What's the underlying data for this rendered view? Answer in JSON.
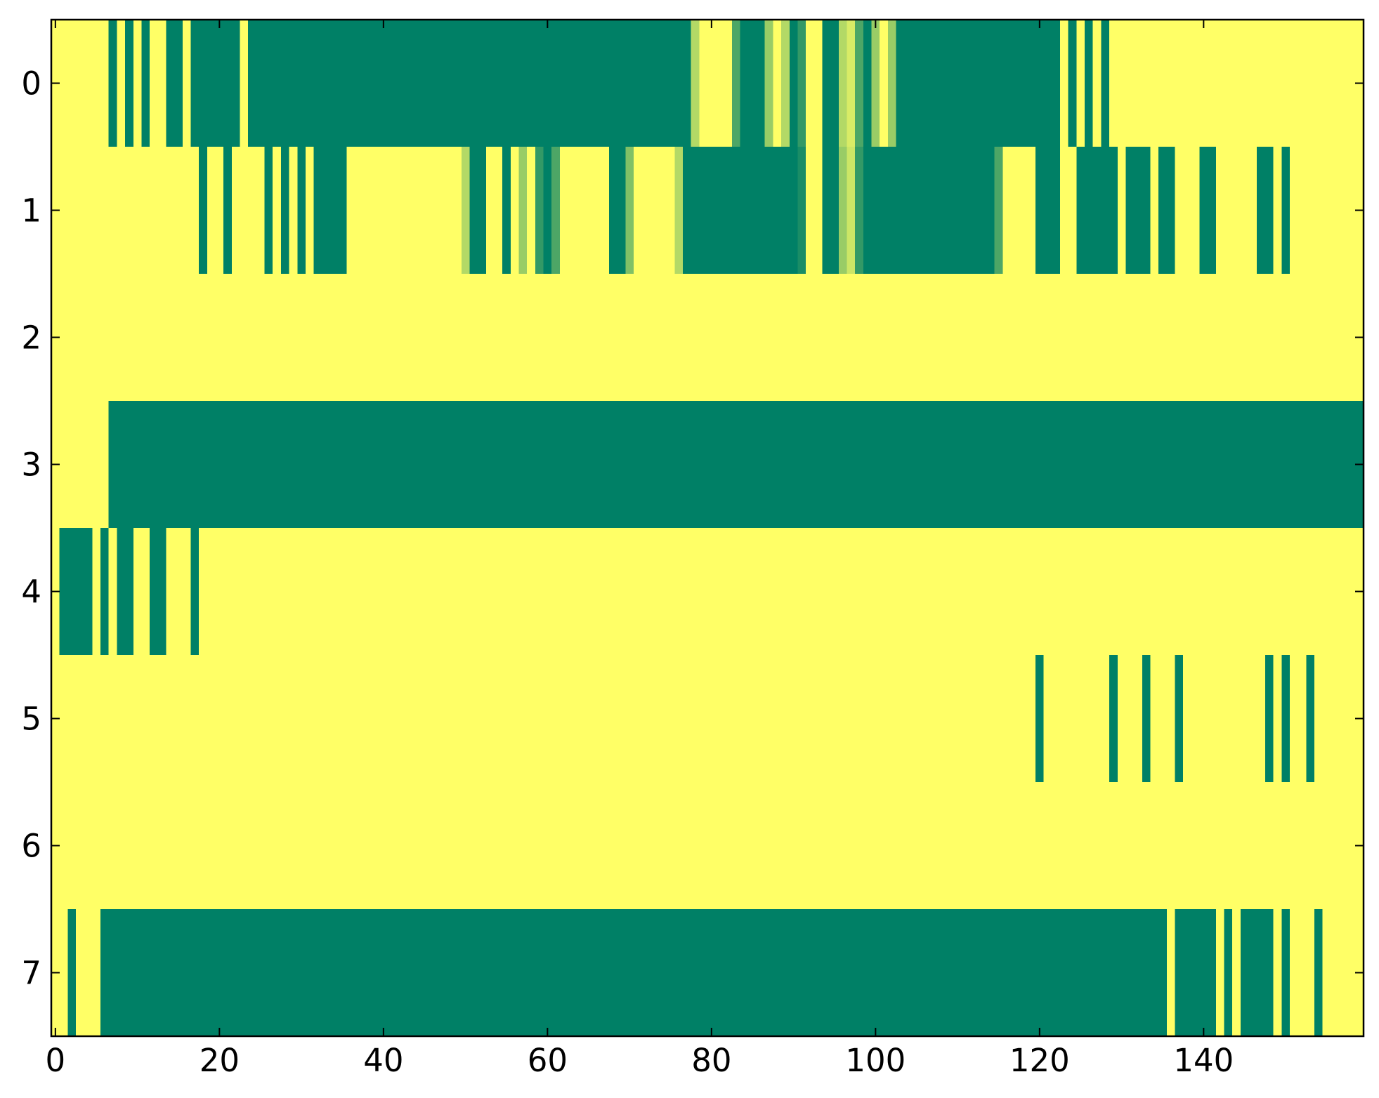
{
  "chart_data": {
    "type": "heatmap",
    "xlim": [
      -0.5,
      159.5
    ],
    "ylim": [
      7.5,
      -0.5
    ],
    "xticks": [
      0,
      20,
      40,
      60,
      80,
      100,
      120,
      140
    ],
    "yticks": [
      0,
      1,
      2,
      3,
      4,
      5,
      6,
      7
    ],
    "vlim": [
      0,
      1
    ],
    "cmap": [
      "#008066",
      "#ffff66"
    ],
    "z": [
      [
        1,
        1,
        1,
        1,
        1,
        1,
        1,
        0,
        1,
        0,
        1,
        0,
        1,
        1,
        0,
        0,
        1,
        0,
        0,
        0,
        0,
        0,
        0,
        1,
        0,
        0,
        0,
        0,
        0,
        0,
        0,
        0,
        0,
        0,
        0,
        0,
        0,
        0,
        0,
        0,
        0,
        0,
        0,
        0,
        0,
        0,
        0,
        0,
        0,
        0,
        0,
        0,
        0,
        0,
        0,
        0,
        0,
        0,
        0,
        0,
        0,
        0,
        0,
        0,
        0,
        0,
        0,
        0,
        0,
        0,
        0,
        0,
        0,
        0,
        0,
        0,
        0,
        0,
        0.7,
        1,
        1,
        1,
        1,
        0.3,
        0,
        0,
        0,
        0.6,
        1,
        0.7,
        0,
        0.2,
        1,
        1,
        0,
        0,
        0.7,
        0.85,
        0.3,
        0,
        0.6,
        1,
        0.6,
        0,
        0,
        0,
        0,
        0,
        0,
        0,
        0,
        0,
        0,
        0,
        0,
        0,
        0,
        0,
        0,
        0,
        0,
        0,
        0,
        1,
        0,
        1,
        0,
        1,
        0,
        1,
        1,
        1,
        1,
        1,
        1,
        1,
        1,
        1,
        1,
        1,
        1,
        1,
        1,
        1,
        1,
        1,
        1,
        1,
        1,
        1,
        1,
        1,
        1,
        1,
        1,
        1,
        1,
        1,
        1,
        1
      ],
      [
        1,
        1,
        1,
        1,
        1,
        1,
        1,
        1,
        1,
        1,
        1,
        1,
        1,
        1,
        1,
        1,
        1,
        1,
        0,
        1,
        1,
        0,
        1,
        1,
        1,
        1,
        0,
        1,
        0,
        1,
        0,
        1,
        0,
        0,
        0,
        0,
        1,
        1,
        1,
        1,
        1,
        1,
        1,
        1,
        1,
        1,
        1,
        1,
        1,
        1,
        0.7,
        0,
        0,
        1,
        1,
        0,
        1,
        0.6,
        1,
        0.2,
        0,
        0.3,
        1,
        1,
        1,
        1,
        1,
        1,
        0,
        0,
        0.5,
        1,
        1,
        1,
        1,
        1,
        0.7,
        0,
        0,
        0,
        0,
        0,
        0,
        0,
        0,
        0,
        0,
        0,
        0,
        0,
        0,
        0.1,
        1,
        1,
        0,
        0,
        0.6,
        0.8,
        0.2,
        0,
        0,
        0,
        0,
        0,
        0,
        0,
        0,
        0,
        0,
        0,
        0,
        0,
        0,
        0,
        0,
        0.3,
        1,
        1,
        1,
        1,
        0,
        0,
        0,
        1,
        1,
        0,
        0,
        0,
        0,
        0,
        1,
        0,
        0,
        0,
        1,
        0,
        0,
        1,
        1,
        1,
        0,
        0,
        1,
        1,
        1,
        1,
        1,
        0,
        0,
        1,
        0,
        1,
        1,
        1,
        1,
        1,
        1,
        1,
        1,
        1
      ],
      [
        1,
        1,
        1,
        1,
        1,
        1,
        1,
        1,
        1,
        1,
        1,
        1,
        1,
        1,
        1,
        1,
        1,
        1,
        1,
        1,
        1,
        1,
        1,
        1,
        1,
        1,
        1,
        1,
        1,
        1,
        1,
        1,
        1,
        1,
        1,
        1,
        1,
        1,
        1,
        1,
        1,
        1,
        1,
        1,
        1,
        1,
        1,
        1,
        1,
        1,
        1,
        1,
        1,
        1,
        1,
        1,
        1,
        1,
        1,
        1,
        1,
        1,
        1,
        1,
        1,
        1,
        1,
        1,
        1,
        1,
        1,
        1,
        1,
        1,
        1,
        1,
        1,
        1,
        1,
        1,
        1,
        1,
        1,
        1,
        1,
        1,
        1,
        1,
        1,
        1,
        1,
        1,
        1,
        1,
        1,
        1,
        1,
        1,
        1,
        1,
        1,
        1,
        1,
        1,
        1,
        1,
        1,
        1,
        1,
        1,
        1,
        1,
        1,
        1,
        1,
        1,
        1,
        1,
        1,
        1,
        1,
        1,
        1,
        1,
        1,
        1,
        1,
        1,
        1,
        1,
        1,
        1,
        1,
        1,
        1,
        1,
        1,
        1,
        1,
        1,
        1,
        1,
        1,
        1,
        1,
        1,
        1,
        1,
        1,
        1,
        1,
        1,
        1,
        1,
        1,
        1,
        1,
        1,
        1,
        1
      ],
      [
        1,
        1,
        1,
        1,
        1,
        1,
        1,
        0,
        0,
        0,
        0,
        0,
        0,
        0,
        0,
        0,
        0,
        0,
        0,
        0,
        0,
        0,
        0,
        0,
        0,
        0,
        0,
        0,
        0,
        0,
        0,
        0,
        0,
        0,
        0,
        0,
        0,
        0,
        0,
        0,
        0,
        0,
        0,
        0,
        0,
        0,
        0,
        0,
        0,
        0,
        0,
        0,
        0,
        0,
        0,
        0,
        0,
        0,
        0,
        0,
        0,
        0,
        0,
        0,
        0,
        0,
        0,
        0,
        0,
        0,
        0,
        0,
        0,
        0,
        0,
        0,
        0,
        0,
        0,
        0,
        0,
        0,
        0,
        0,
        0,
        0,
        0,
        0,
        0,
        0,
        0,
        0,
        0,
        0,
        0,
        0,
        0,
        0,
        0,
        0,
        0,
        0,
        0,
        0,
        0,
        0,
        0,
        0,
        0,
        0,
        0,
        0,
        0,
        0,
        0,
        0,
        0,
        0,
        0,
        0,
        0,
        0,
        0,
        0,
        0,
        0,
        0,
        0,
        0,
        0,
        0,
        0,
        0,
        0,
        0,
        0,
        0,
        0,
        0,
        0,
        0,
        0,
        0,
        0,
        0,
        0,
        0,
        0,
        0,
        0,
        0,
        0,
        0,
        0,
        0,
        0,
        0,
        0,
        0,
        0
      ],
      [
        1,
        0,
        0,
        0,
        0,
        1,
        0,
        1,
        0,
        0,
        1,
        1,
        0,
        0,
        1,
        1,
        1,
        0,
        1,
        1,
        1,
        1,
        1,
        1,
        1,
        1,
        1,
        1,
        1,
        1,
        1,
        1,
        1,
        1,
        1,
        1,
        1,
        1,
        1,
        1,
        1,
        1,
        1,
        1,
        1,
        1,
        1,
        1,
        1,
        1,
        1,
        1,
        1,
        1,
        1,
        1,
        1,
        1,
        1,
        1,
        1,
        1,
        1,
        1,
        1,
        1,
        1,
        1,
        1,
        1,
        1,
        1,
        1,
        1,
        1,
        1,
        1,
        1,
        1,
        1,
        1,
        1,
        1,
        1,
        1,
        1,
        1,
        1,
        1,
        1,
        1,
        1,
        1,
        1,
        1,
        1,
        1,
        1,
        1,
        1,
        1,
        1,
        1,
        1,
        1,
        1,
        1,
        1,
        1,
        1,
        1,
        1,
        1,
        1,
        1,
        1,
        1,
        1,
        1,
        1,
        1,
        1,
        1,
        1,
        1,
        1,
        1,
        1,
        1,
        1,
        1,
        1,
        1,
        1,
        1,
        1,
        1,
        1,
        1,
        1,
        1,
        1,
        1,
        1,
        1,
        1,
        1,
        1,
        1,
        1,
        1,
        1,
        1,
        1,
        1,
        1,
        1,
        1,
        1,
        1
      ],
      [
        1,
        1,
        1,
        1,
        1,
        1,
        1,
        1,
        1,
        1,
        1,
        1,
        1,
        1,
        1,
        1,
        1,
        1,
        1,
        1,
        1,
        1,
        1,
        1,
        1,
        1,
        1,
        1,
        1,
        1,
        1,
        1,
        1,
        1,
        1,
        1,
        1,
        1,
        1,
        1,
        1,
        1,
        1,
        1,
        1,
        1,
        1,
        1,
        1,
        1,
        1,
        1,
        1,
        1,
        1,
        1,
        1,
        1,
        1,
        1,
        1,
        1,
        1,
        1,
        1,
        1,
        1,
        1,
        1,
        1,
        1,
        1,
        1,
        1,
        1,
        1,
        1,
        1,
        1,
        1,
        1,
        1,
        1,
        1,
        1,
        1,
        1,
        1,
        1,
        1,
        1,
        1,
        1,
        1,
        1,
        1,
        1,
        1,
        1,
        1,
        1,
        1,
        1,
        1,
        1,
        1,
        1,
        1,
        1,
        1,
        1,
        1,
        1,
        1,
        1,
        1,
        1,
        1,
        1,
        1,
        0,
        1,
        1,
        1,
        1,
        1,
        1,
        1,
        1,
        0,
        1,
        1,
        1,
        0,
        1,
        1,
        1,
        0,
        1,
        1,
        1,
        1,
        1,
        1,
        1,
        1,
        1,
        1,
        0,
        1,
        0,
        1,
        1,
        0,
        1,
        1,
        1,
        1,
        1,
        1
      ],
      [
        1,
        1,
        1,
        1,
        1,
        1,
        1,
        1,
        1,
        1,
        1,
        1,
        1,
        1,
        1,
        1,
        1,
        1,
        1,
        1,
        1,
        1,
        1,
        1,
        1,
        1,
        1,
        1,
        1,
        1,
        1,
        1,
        1,
        1,
        1,
        1,
        1,
        1,
        1,
        1,
        1,
        1,
        1,
        1,
        1,
        1,
        1,
        1,
        1,
        1,
        1,
        1,
        1,
        1,
        1,
        1,
        1,
        1,
        1,
        1,
        1,
        1,
        1,
        1,
        1,
        1,
        1,
        1,
        1,
        1,
        1,
        1,
        1,
        1,
        1,
        1,
        1,
        1,
        1,
        1,
        1,
        1,
        1,
        1,
        1,
        1,
        1,
        1,
        1,
        1,
        1,
        1,
        1,
        1,
        1,
        1,
        1,
        1,
        1,
        1,
        1,
        1,
        1,
        1,
        1,
        1,
        1,
        1,
        1,
        1,
        1,
        1,
        1,
        1,
        1,
        1,
        1,
        1,
        1,
        1,
        1,
        1,
        1,
        1,
        1,
        1,
        1,
        1,
        1,
        1,
        1,
        1,
        1,
        1,
        1,
        1,
        1,
        1,
        1,
        1,
        1,
        1,
        1,
        1,
        1,
        1,
        1,
        1,
        1,
        1,
        1,
        1,
        1,
        1,
        1,
        1,
        1,
        1,
        1,
        1
      ],
      [
        1,
        1,
        0,
        1,
        1,
        1,
        0,
        0,
        0,
        0,
        0,
        0,
        0,
        0,
        0,
        0,
        0,
        0,
        0,
        0,
        0,
        0,
        0,
        0,
        0,
        0,
        0,
        0,
        0,
        0,
        0,
        0,
        0,
        0,
        0,
        0,
        0,
        0,
        0,
        0,
        0,
        0,
        0,
        0,
        0,
        0,
        0,
        0,
        0,
        0,
        0,
        0,
        0,
        0,
        0,
        0,
        0,
        0,
        0,
        0,
        0,
        0,
        0,
        0,
        0,
        0,
        0,
        0,
        0,
        0,
        0,
        0,
        0,
        0,
        0,
        0,
        0,
        0,
        0,
        0,
        0,
        0,
        0,
        0,
        0,
        0,
        0,
        0,
        0,
        0,
        0,
        0,
        0,
        0,
        0,
        0,
        0,
        0,
        0,
        0,
        0,
        0,
        0,
        0,
        0,
        0,
        0,
        0,
        0,
        0,
        0,
        0,
        0,
        0,
        0,
        0,
        0,
        0,
        0,
        0,
        0,
        0,
        0,
        0,
        0,
        0,
        0,
        0,
        0,
        0,
        0,
        0,
        0,
        0,
        0,
        0,
        1,
        0,
        0,
        0,
        0,
        0,
        1,
        0,
        1,
        0,
        0,
        0,
        0,
        1,
        0,
        1,
        1,
        1,
        0,
        1,
        1,
        1,
        1,
        1
      ]
    ]
  }
}
